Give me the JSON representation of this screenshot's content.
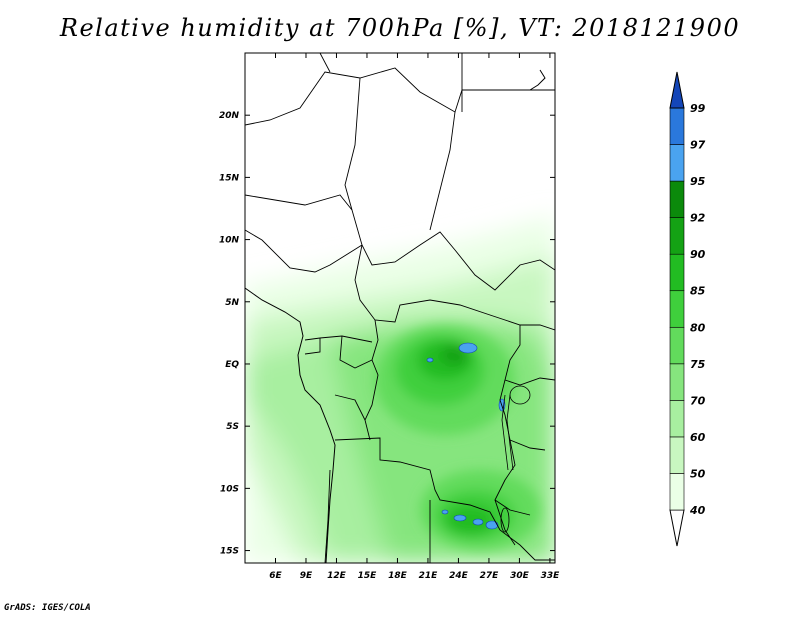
{
  "title": "Relative humidity at 700hPa [%], VT: 2018121900",
  "credit": "GrADS: IGES/COLA",
  "map": {
    "lon_range": [
      3,
      33.5
    ],
    "lat_range": [
      -16,
      25
    ],
    "lon_ticks": [
      "6E",
      "9E",
      "12E",
      "15E",
      "18E",
      "21E",
      "24E",
      "27E",
      "30E",
      "33E"
    ],
    "lat_ticks": [
      "20N",
      "15N",
      "10N",
      "5N",
      "EQ",
      "5S",
      "10S",
      "15S"
    ],
    "variable": "relative humidity",
    "level": "700hPa",
    "units": "%",
    "valid_time": "2018121900"
  },
  "colorbar": {
    "orientation": "vertical",
    "placement": "right",
    "levels": [
      "40",
      "50",
      "60",
      "70",
      "75",
      "80",
      "85",
      "90",
      "92",
      "95",
      "97",
      "99"
    ],
    "colors": [
      "#ffffff",
      "#eaffe6",
      "#c8f7c0",
      "#a8efa0",
      "#86e57e",
      "#62db5c",
      "#3fcf3c",
      "#22bc22",
      "#14a214",
      "#0b8a0b",
      "#4aa3f0",
      "#2a78dc",
      "#1446b8"
    ]
  }
}
